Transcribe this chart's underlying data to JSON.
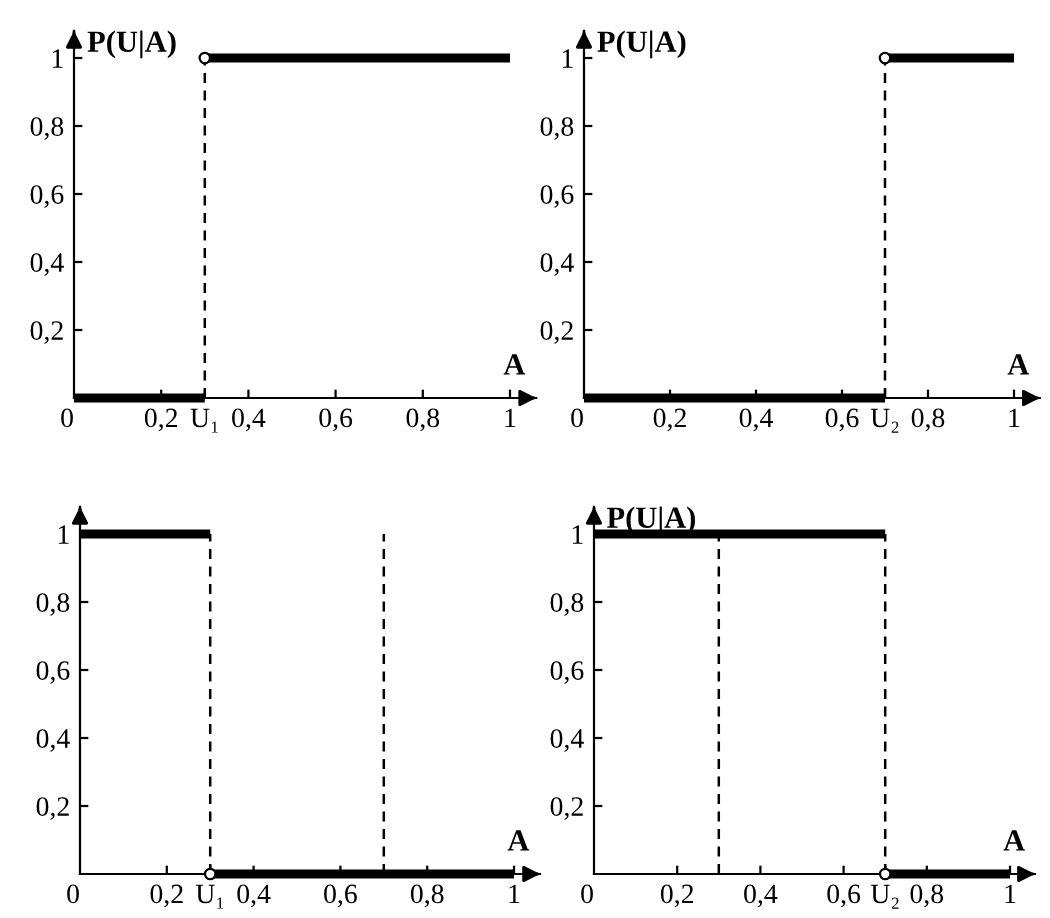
{
  "chart_data": [
    {
      "type": "line",
      "ylabel": "P(U|A)",
      "xlabel": "A",
      "xlim": [
        0,
        1.06
      ],
      "ylim": [
        0,
        1.08
      ],
      "xticks": [
        {
          "value": 0,
          "label": "0"
        },
        {
          "value": 0.2,
          "label": "0,2"
        },
        {
          "value": 0.3,
          "label": "U₁"
        },
        {
          "value": 0.4,
          "label": "0,4"
        },
        {
          "value": 0.6,
          "label": "0,6"
        },
        {
          "value": 0.8,
          "label": "0,8"
        },
        1
      ],
      "yticks": [
        {
          "value": 0.2,
          "label": "0,2"
        },
        {
          "value": 0.4,
          "label": "0,4"
        },
        {
          "value": 0.6,
          "label": "0,6"
        },
        {
          "value": 0.8,
          "label": "0,8"
        },
        1
      ],
      "series": [
        {
          "color": "#000000",
          "x": [
            0,
            0.3
          ],
          "values": [
            0,
            0
          ]
        },
        {
          "color": "#000000",
          "x": [
            0.3,
            1
          ],
          "values": [
            1,
            1
          ]
        },
        {
          "type": "scatter",
          "marker": "circle",
          "color": "#000000",
          "x": [
            0.3
          ],
          "values": [
            1
          ]
        }
      ],
      "ref_lines": [
        {
          "axis": "x",
          "value": 0.3,
          "line_style": "dashed",
          "color": "#000000"
        }
      ]
    },
    {
      "type": "line",
      "ylabel": "P(U|A)",
      "xlabel": "A",
      "xlim": [
        0,
        1.06
      ],
      "ylim": [
        0,
        1.08
      ],
      "xticks": [
        {
          "value": 0,
          "label": "0"
        },
        {
          "value": 0.2,
          "label": "0,2"
        },
        {
          "value": 0.4,
          "label": "0,4"
        },
        {
          "value": 0.6,
          "label": "0,6"
        },
        {
          "value": 0.7,
          "label": "U₂"
        },
        {
          "value": 0.8,
          "label": "0,8"
        },
        1
      ],
      "yticks": [
        {
          "value": 0.2,
          "label": "0,2"
        },
        {
          "value": 0.4,
          "label": "0,4"
        },
        {
          "value": 0.6,
          "label": "0,6"
        },
        {
          "value": 0.8,
          "label": "0,8"
        },
        1
      ],
      "series": [
        {
          "color": "#000000",
          "x": [
            0,
            0.7
          ],
          "values": [
            0,
            0
          ]
        },
        {
          "color": "#000000",
          "x": [
            0.7,
            1
          ],
          "values": [
            1,
            1
          ]
        },
        {
          "type": "scatter",
          "marker": "circle",
          "color": "#000000",
          "x": [
            0.7
          ],
          "values": [
            1
          ]
        }
      ],
      "ref_lines": [
        {
          "axis": "x",
          "value": 0.7,
          "line_style": "dashed",
          "color": "#000000"
        }
      ]
    },
    {
      "type": "line",
      "xlabel": "A",
      "xlim": [
        0,
        1.06
      ],
      "ylim": [
        0,
        1.08
      ],
      "xticks": [
        {
          "value": 0,
          "label": "0"
        },
        {
          "value": 0.2,
          "label": "0,2"
        },
        {
          "value": 0.3,
          "label": "U₁"
        },
        {
          "value": 0.4,
          "label": "0,4"
        },
        {
          "value": 0.6,
          "label": "0,6"
        },
        {
          "value": 0.8,
          "label": "0,8"
        },
        1
      ],
      "yticks": [
        {
          "value": 0.2,
          "label": "0,2"
        },
        {
          "value": 0.4,
          "label": "0,4"
        },
        {
          "value": 0.6,
          "label": "0,6"
        },
        {
          "value": 0.8,
          "label": "0,8"
        },
        1
      ],
      "series": [
        {
          "color": "#000000",
          "x": [
            0,
            0.3
          ],
          "values": [
            1,
            1
          ]
        },
        {
          "color": "#000000",
          "x": [
            0.3,
            1
          ],
          "values": [
            0,
            0
          ]
        },
        {
          "type": "scatter",
          "marker": "circle",
          "color": "#000000",
          "x": [
            0.3
          ],
          "values": [
            0
          ]
        }
      ],
      "ref_lines": [
        {
          "axis": "x",
          "value": 0.3,
          "line_style": "dashed",
          "color": "#000000"
        },
        {
          "axis": "x",
          "value": 0.7,
          "line_style": "dashed",
          "color": "#000000"
        }
      ]
    },
    {
      "type": "line",
      "ylabel": "P(U|A)",
      "xlabel": "A",
      "xlim": [
        0,
        1.06
      ],
      "ylim": [
        0,
        1.08
      ],
      "xticks": [
        {
          "value": 0,
          "label": "0"
        },
        {
          "value": 0.2,
          "label": "0,2"
        },
        {
          "value": 0.4,
          "label": "0,4"
        },
        {
          "value": 0.6,
          "label": "0,6"
        },
        {
          "value": 0.7,
          "label": "U₂"
        },
        {
          "value": 0.8,
          "label": "0,8"
        },
        1
      ],
      "yticks": [
        {
          "value": 0.2,
          "label": "0,2"
        },
        {
          "value": 0.4,
          "label": "0,4"
        },
        {
          "value": 0.6,
          "label": "0,6"
        },
        {
          "value": 0.8,
          "label": "0,8"
        },
        1
      ],
      "series": [
        {
          "color": "#000000",
          "x": [
            0,
            0.7
          ],
          "values": [
            1,
            1
          ]
        },
        {
          "color": "#000000",
          "x": [
            0.7,
            1
          ],
          "values": [
            0,
            0
          ]
        },
        {
          "type": "scatter",
          "marker": "circle",
          "color": "#000000",
          "x": [
            0.7
          ],
          "values": [
            0
          ]
        }
      ],
      "ref_lines": [
        {
          "axis": "x",
          "value": 0.3,
          "line_style": "dashed",
          "color": "#000000"
        },
        {
          "axis": "x",
          "value": 0.7,
          "line_style": "dashed",
          "color": "#000000"
        }
      ]
    }
  ]
}
